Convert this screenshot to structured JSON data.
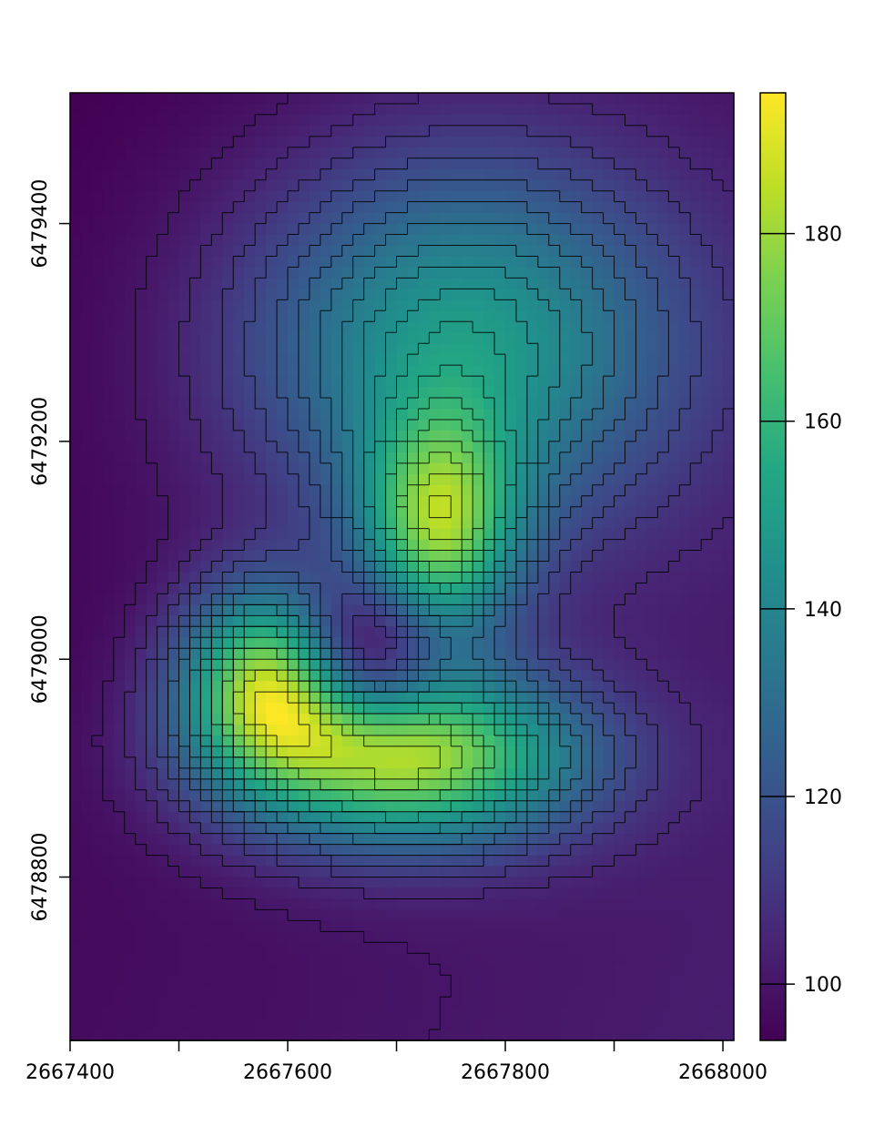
{
  "chart_data": {
    "type": "heatmap",
    "title": "",
    "xlabel": "",
    "ylabel": "",
    "xlim": [
      2667400,
      2668010
    ],
    "ylim": [
      6478650,
      6479520
    ],
    "x_ticks": [
      {
        "value": 2667400,
        "label": "2667400"
      },
      {
        "value": 2667500,
        "label": ""
      },
      {
        "value": 2667600,
        "label": "2667600"
      },
      {
        "value": 2667700,
        "label": ""
      },
      {
        "value": 2667800,
        "label": "2667800"
      },
      {
        "value": 2667900,
        "label": ""
      },
      {
        "value": 2668000,
        "label": "2668000"
      }
    ],
    "y_ticks": [
      {
        "value": 6478800,
        "label": "6478800"
      },
      {
        "value": 6479000,
        "label": "6479000"
      },
      {
        "value": 6479200,
        "label": "6479200"
      },
      {
        "value": 6479400,
        "label": "6479400"
      }
    ],
    "colorbar": {
      "min": 94,
      "max": 195,
      "ticks": [
        {
          "value": 100,
          "label": "100"
        },
        {
          "value": 120,
          "label": "120"
        },
        {
          "value": 140,
          "label": "140"
        },
        {
          "value": 160,
          "label": "160"
        },
        {
          "value": 180,
          "label": "180"
        }
      ],
      "palette": "viridis"
    },
    "peaks": [
      {
        "x": 2667710,
        "y": 6478910,
        "value": 195,
        "sx": 110,
        "sy": 55
      },
      {
        "x": 2667580,
        "y": 6478980,
        "value": 185,
        "sx": 55,
        "sy": 60
      },
      {
        "x": 2667740,
        "y": 6479120,
        "value": 176,
        "sx": 50,
        "sy": 70
      },
      {
        "x": 2667760,
        "y": 6479290,
        "value": 158,
        "sx": 140,
        "sy": 120
      }
    ],
    "crater": {
      "x": 2667670,
      "y": 6479000,
      "depth": 38,
      "sx": 45,
      "sy": 45
    },
    "contour_levels": [
      100,
      105,
      110,
      115,
      120,
      125,
      130,
      135,
      140,
      145,
      150,
      155,
      160,
      165,
      170,
      175,
      180,
      185,
      190
    ]
  }
}
